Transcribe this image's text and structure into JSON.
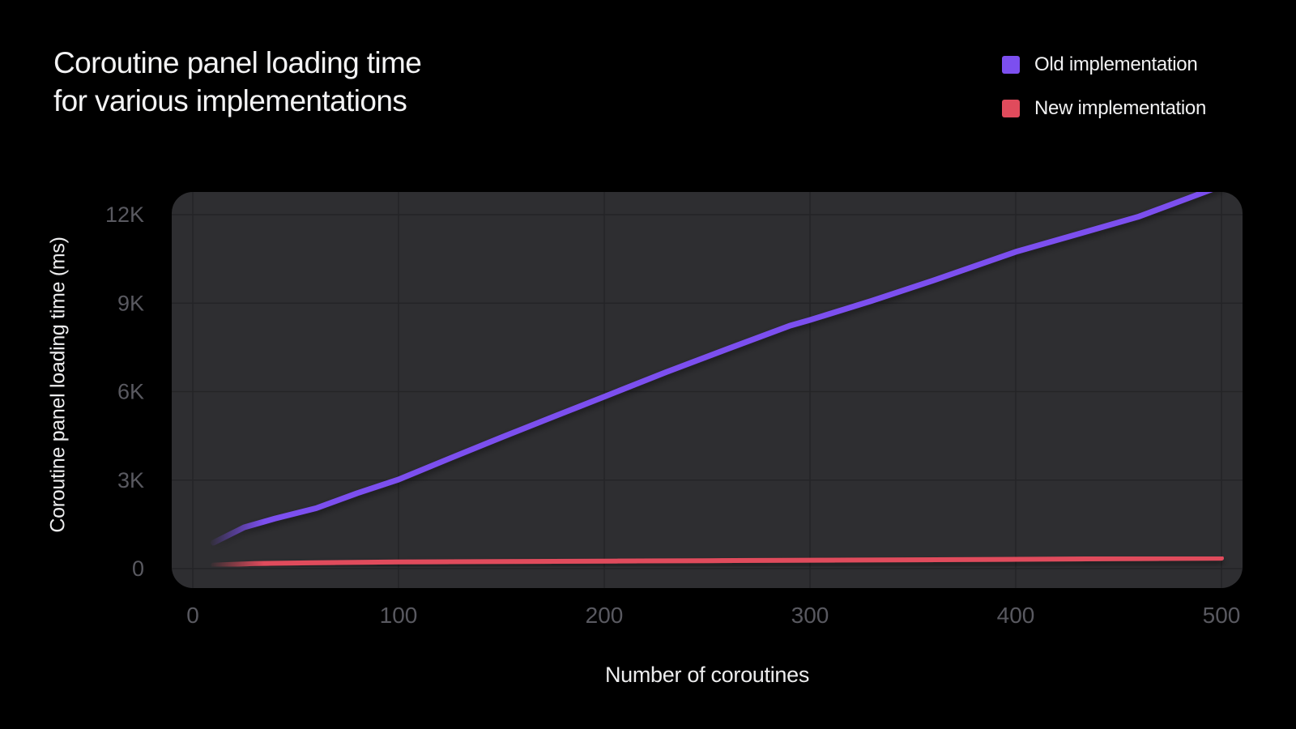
{
  "header": {
    "title_line1": "Coroutine panel loading time",
    "title_line2": "for various implementations"
  },
  "legend": [
    {
      "label": "Old implementation",
      "color": "#7C4FEF"
    },
    {
      "label": "New implementation",
      "color": "#E04B5C"
    }
  ],
  "axes": {
    "ylabel": "Coroutine panel loading time (ms)",
    "xlabel": "Number of coroutines"
  },
  "colors": {
    "background": "#000000",
    "plot_fill": "#2E2E31",
    "gridline": "#242427",
    "tick_text": "#595960",
    "title_text": "#F3F3F4",
    "old_line": "#7C4FEF",
    "new_line": "#E04B5C"
  },
  "chart_data": {
    "type": "line",
    "title": "Coroutine panel loading time for various implementations",
    "xlabel": "Number of coroutines",
    "ylabel": "Coroutine panel loading time (ms)",
    "xlim": [
      0,
      500
    ],
    "ylim": [
      0,
      12770
    ],
    "grid": true,
    "legend_position": "top-right",
    "x_ticks": {
      "values": [
        0,
        100,
        200,
        300,
        400,
        500
      ],
      "labels": [
        "0",
        "100",
        "200",
        "300",
        "400",
        "500"
      ]
    },
    "y_ticks": {
      "values": [
        0,
        3000,
        6000,
        9000,
        12000
      ],
      "labels": [
        "0",
        "3K",
        "6K",
        "9K",
        "12K"
      ]
    },
    "series": [
      {
        "name": "Old implementation",
        "color": "#7C4FEF",
        "points": [
          [
            10,
            880
          ],
          [
            25,
            1400
          ],
          [
            40,
            1700
          ],
          [
            60,
            2050
          ],
          [
            80,
            2560
          ],
          [
            100,
            3020
          ],
          [
            125,
            3740
          ],
          [
            150,
            4450
          ],
          [
            175,
            5140
          ],
          [
            200,
            5830
          ],
          [
            230,
            6660
          ],
          [
            260,
            7450
          ],
          [
            290,
            8230
          ],
          [
            300,
            8430
          ],
          [
            330,
            9080
          ],
          [
            360,
            9770
          ],
          [
            400,
            10740
          ],
          [
            430,
            11340
          ],
          [
            460,
            11940
          ],
          [
            500,
            12980
          ]
        ]
      },
      {
        "name": "New implementation",
        "color": "#E04B5C",
        "points": [
          [
            10,
            120
          ],
          [
            30,
            170
          ],
          [
            60,
            200
          ],
          [
            100,
            225
          ],
          [
            150,
            240
          ],
          [
            200,
            255
          ],
          [
            250,
            270
          ],
          [
            300,
            285
          ],
          [
            350,
            300
          ],
          [
            400,
            315
          ],
          [
            450,
            335
          ],
          [
            500,
            355
          ]
        ]
      }
    ]
  }
}
